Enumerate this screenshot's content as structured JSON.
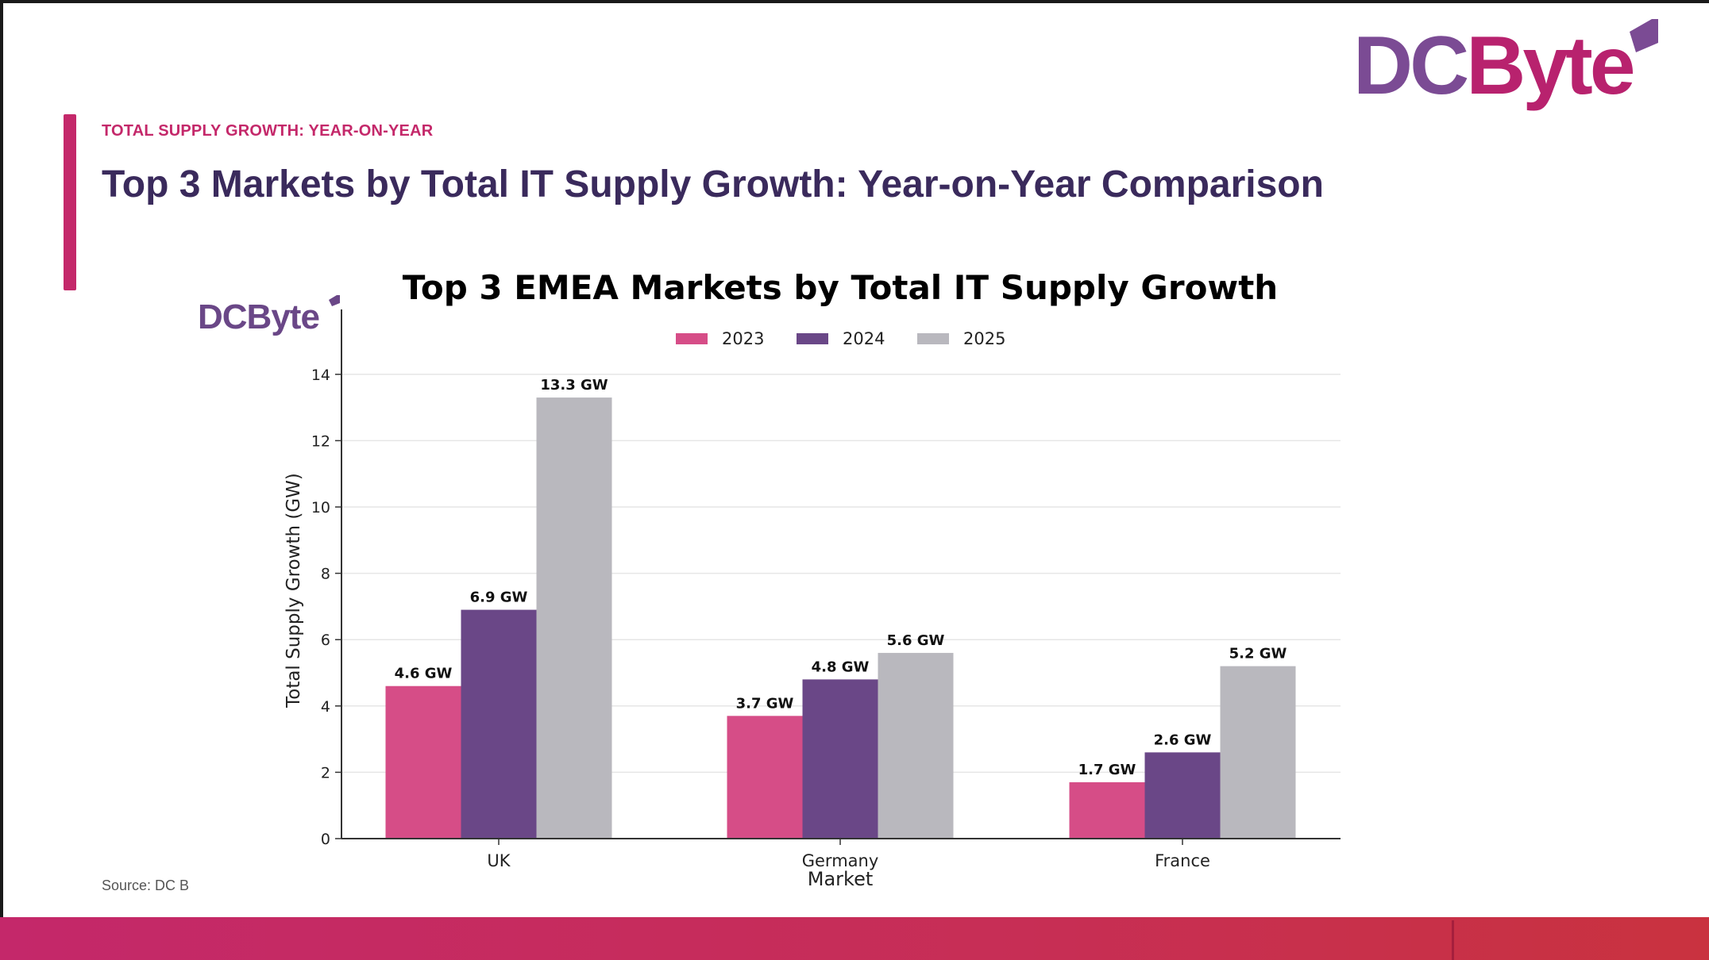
{
  "slide": {
    "eyebrow": "TOTAL SUPPLY GROWTH: YEAR-ON-YEAR",
    "title": "Top 3 Markets by Total IT Supply Growth: Year-on-Year Comparison",
    "source": "Source: DC Byte"
  },
  "brand": {
    "logo_text": "DCByte",
    "chart_logo_text": "DCByte",
    "logo_colors": {
      "dc": "#7b4b94",
      "byte": "#b8226e"
    },
    "accent_color": "#c4286a",
    "title_color": "#3a2a5c"
  },
  "chart_data": {
    "type": "bar",
    "title": "Top 3 EMEA Markets by Total IT Supply Growth",
    "xlabel": "Market",
    "ylabel": "Total Supply Growth (GW)",
    "categories": [
      "UK",
      "Germany",
      "France"
    ],
    "series": [
      {
        "name": "2023",
        "color": "#d64d87",
        "values": [
          4.6,
          3.7,
          1.7
        ],
        "labels": [
          "4.6 GW",
          "3.7 GW",
          "1.7 GW"
        ]
      },
      {
        "name": "2024",
        "color": "#6a4787",
        "values": [
          6.9,
          4.8,
          2.6
        ],
        "labels": [
          "6.9 GW",
          "4.8 GW",
          "2.6 GW"
        ]
      },
      {
        "name": "2025",
        "color": "#b9b8be",
        "values": [
          13.3,
          5.6,
          5.2
        ],
        "labels": [
          "13.3 GW",
          "5.6 GW",
          "5.2 GW"
        ]
      }
    ],
    "ylim": [
      0,
      15
    ],
    "yticks": [
      0,
      2,
      4,
      6,
      8,
      10,
      12,
      14
    ],
    "grid": true,
    "legend_position": "top-center"
  }
}
